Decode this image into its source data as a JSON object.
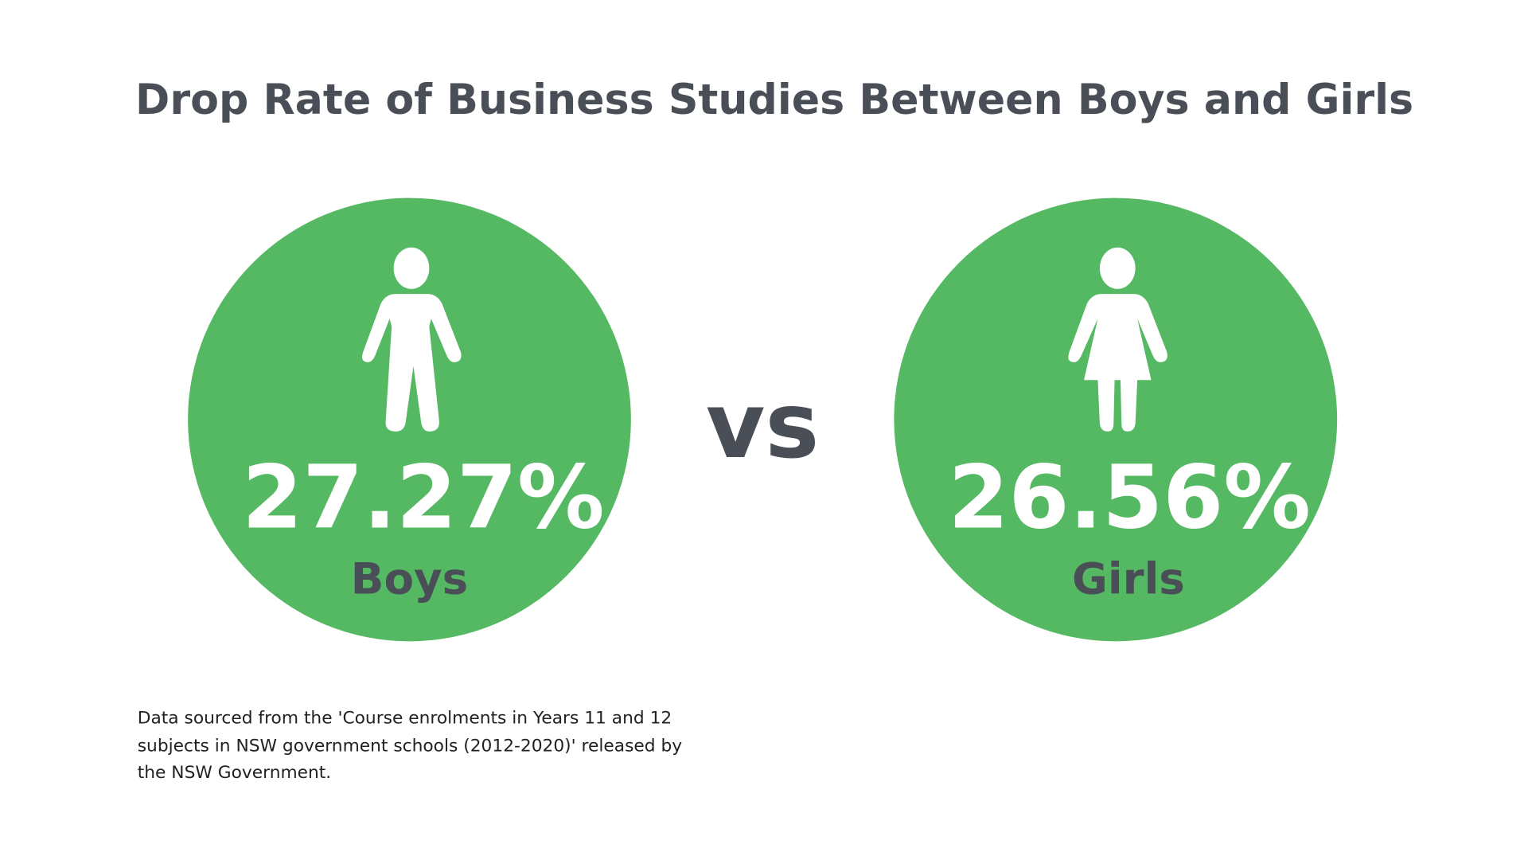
{
  "title": "Drop Rate of Business Studies Between Boys and Girls",
  "panels": [
    {
      "value": "27.27%",
      "label": "Boys"
    },
    {
      "value": "26.56%",
      "label": "Girls"
    }
  ],
  "separator": "vs",
  "footnote": [
    "Data sourced from the 'Course enrolments in Years 11 and 12",
    "subjects in NSW government schools (2012-2020)' released by",
    "the NSW Government."
  ]
}
